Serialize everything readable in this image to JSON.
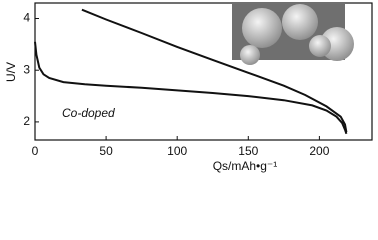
{
  "chart_data": {
    "type": "line",
    "x_label": "Qs/mAh•g⁻¹",
    "y_label": "U/V",
    "annotation": "Co-doped",
    "series": [
      {
        "color": "#111111",
        "x": [
          0,
          1,
          3,
          6,
          10,
          20,
          35,
          50,
          75,
          100,
          125,
          150,
          175,
          195,
          205,
          212,
          216,
          218,
          219
        ],
        "values": [
          3.55,
          3.3,
          3.05,
          2.92,
          2.85,
          2.77,
          2.73,
          2.7,
          2.66,
          2.61,
          2.56,
          2.5,
          2.42,
          2.32,
          2.22,
          2.1,
          1.98,
          1.85,
          1.77
        ]
      },
      {
        "color": "#111111",
        "x": [
          219,
          218,
          215,
          205,
          190,
          175,
          150,
          125,
          100,
          75,
          50,
          33
        ],
        "values": [
          1.8,
          1.95,
          2.1,
          2.3,
          2.52,
          2.7,
          2.95,
          3.2,
          3.45,
          3.72,
          3.98,
          4.17
        ]
      }
    ],
    "xlim": [
      0,
      237
    ],
    "xticks": [
      0,
      50,
      100,
      150,
      200
    ],
    "ylim": [
      1.65,
      4.3
    ],
    "yticks": [
      2,
      3,
      4
    ]
  }
}
